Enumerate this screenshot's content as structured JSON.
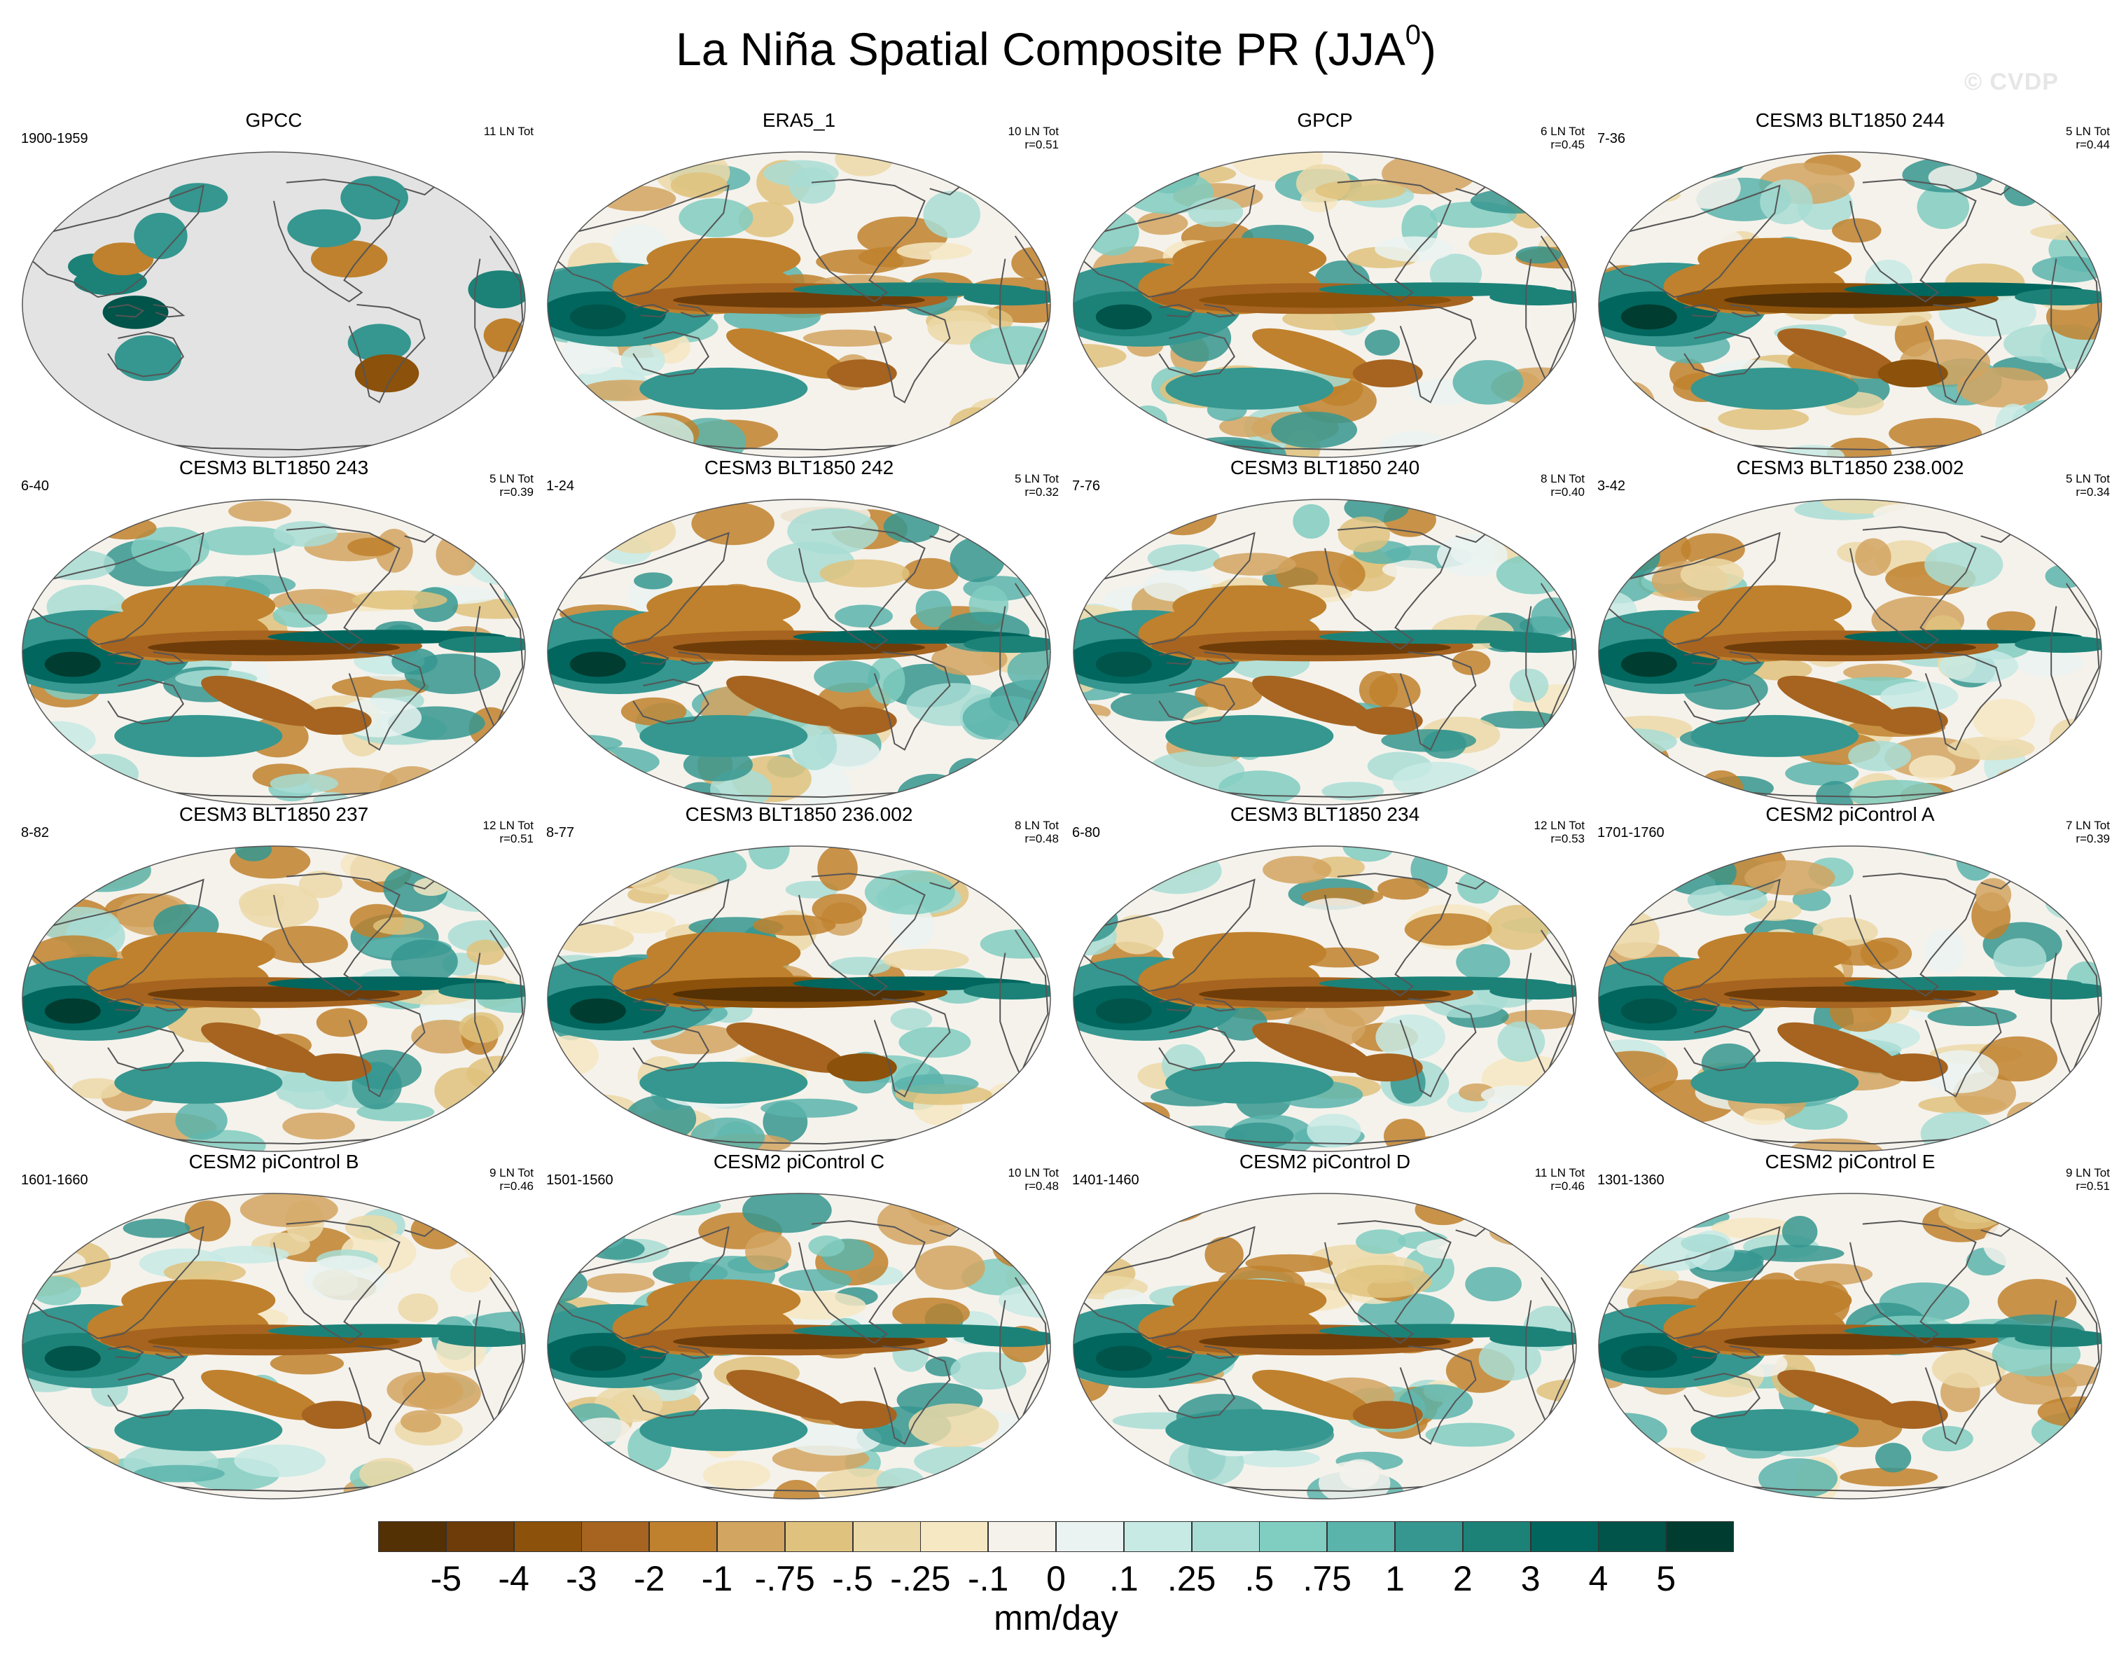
{
  "title": {
    "main": "La Niña Spatial Composite PR (JJA",
    "superscript": "0",
    "close": ")"
  },
  "watermark": "© CVDP",
  "colors": {
    "land_masked": "#e3e3e3",
    "coastline": "#555555",
    "ocean_background": "#f5f2ec"
  },
  "panels": [
    {
      "title": "GPCC",
      "years": "1900-1959",
      "events": "11 LN Tot",
      "corr": "",
      "masked": true,
      "strength": 0.5
    },
    {
      "title": "ERA5_1",
      "years": "",
      "events": "10 LN Tot",
      "corr": "r=0.51",
      "masked": false,
      "strength": 0.8
    },
    {
      "title": "GPCP",
      "years": "",
      "events": "6 LN Tot",
      "corr": "r=0.45",
      "masked": false,
      "strength": 0.75
    },
    {
      "title": "CESM3 BLT1850 244",
      "years": "7-36",
      "events": "5 LN Tot",
      "corr": "r=0.44",
      "masked": false,
      "strength": 1.0
    },
    {
      "title": "CESM3 BLT1850 243",
      "years": "6-40",
      "events": "5 LN Tot",
      "corr": "r=0.39",
      "masked": false,
      "strength": 0.95
    },
    {
      "title": "CESM3 BLT1850 242",
      "years": "1-24",
      "events": "5 LN Tot",
      "corr": "r=0.32",
      "masked": false,
      "strength": 0.95
    },
    {
      "title": "CESM3 BLT1850 240",
      "years": "7-76",
      "events": "8 LN Tot",
      "corr": "r=0.40",
      "masked": false,
      "strength": 0.9
    },
    {
      "title": "CESM3 BLT1850 238.002",
      "years": "3-42",
      "events": "5 LN Tot",
      "corr": "r=0.34",
      "masked": false,
      "strength": 0.95
    },
    {
      "title": "CESM3 BLT1850 237",
      "years": "8-82",
      "events": "12 LN Tot",
      "corr": "r=0.51",
      "masked": false,
      "strength": 0.95
    },
    {
      "title": "CESM3 BLT1850 236.002",
      "years": "8-77",
      "events": "8 LN Tot",
      "corr": "r=0.48",
      "masked": false,
      "strength": 1.0
    },
    {
      "title": "CESM3 BLT1850 234",
      "years": "6-80",
      "events": "12 LN Tot",
      "corr": "r=0.53",
      "masked": false,
      "strength": 0.9
    },
    {
      "title": "CESM2 piControl A",
      "years": "1701-1760",
      "events": "7 LN Tot",
      "corr": "r=0.39",
      "masked": false,
      "strength": 0.85
    },
    {
      "title": "CESM2 piControl B",
      "years": "1601-1660",
      "events": "9 LN Tot",
      "corr": "r=0.46",
      "masked": false,
      "strength": 0.75
    },
    {
      "title": "CESM2 piControl C",
      "years": "1501-1560",
      "events": "10 LN Tot",
      "corr": "r=0.48",
      "masked": false,
      "strength": 0.85
    },
    {
      "title": "CESM2 piControl D",
      "years": "1401-1460",
      "events": "11 LN Tot",
      "corr": "r=0.46",
      "masked": false,
      "strength": 0.8
    },
    {
      "title": "CESM2 piControl E",
      "years": "1301-1360",
      "events": "9 LN Tot",
      "corr": "r=0.51",
      "masked": false,
      "strength": 0.85
    }
  ],
  "colorbar": {
    "colors": [
      "#543005",
      "#6e3c08",
      "#8c510a",
      "#a66420",
      "#bf812d",
      "#d2a560",
      "#dfc27d",
      "#ecd9a8",
      "#f6e8c3",
      "#f5f2ec",
      "#eaf3f1",
      "#c7eae5",
      "#a8ddd5",
      "#80cdc1",
      "#5ab4ac",
      "#35978f",
      "#1c8278",
      "#01665e",
      "#00544a",
      "#003c30"
    ],
    "ticks": [
      "-5",
      "-4",
      "-3",
      "-2",
      "-1",
      "-.75",
      "-.5",
      "-.25",
      "-.1",
      "0",
      ".1",
      ".25",
      ".5",
      ".75",
      "1",
      "2",
      "3",
      "4",
      "5"
    ],
    "unit": "mm/day"
  },
  "chart_data": {
    "type": "heatmap",
    "title": "La Niña Spatial Composite PR (JJA0)",
    "variable": "precipitation anomaly",
    "units": "mm/day",
    "levels": [
      -5,
      -4,
      -3,
      -2,
      -1,
      -0.75,
      -0.5,
      -0.25,
      -0.1,
      0,
      0.1,
      0.25,
      0.5,
      0.75,
      1,
      2,
      3,
      4,
      5
    ],
    "panels": [
      "GPCC",
      "ERA5_1",
      "GPCP",
      "CESM3 BLT1850 244",
      "CESM3 BLT1850 243",
      "CESM3 BLT1850 242",
      "CESM3 BLT1850 240",
      "CESM3 BLT1850 238.002",
      "CESM3 BLT1850 237",
      "CESM3 BLT1850 236.002",
      "CESM3 BLT1850 234",
      "CESM2 piControl A",
      "CESM2 piControl B",
      "CESM2 piControl C",
      "CESM2 piControl D",
      "CESM2 piControl E"
    ],
    "la_nina_events": [
      11,
      10,
      6,
      5,
      5,
      5,
      8,
      5,
      12,
      8,
      12,
      7,
      9,
      10,
      11,
      9
    ],
    "pattern_correlation": [
      null,
      0.51,
      0.45,
      0.44,
      0.39,
      0.32,
      0.4,
      0.34,
      0.51,
      0.48,
      0.53,
      0.39,
      0.46,
      0.48,
      0.46,
      0.51
    ],
    "projection": "Robinson, Pacific-centered"
  }
}
